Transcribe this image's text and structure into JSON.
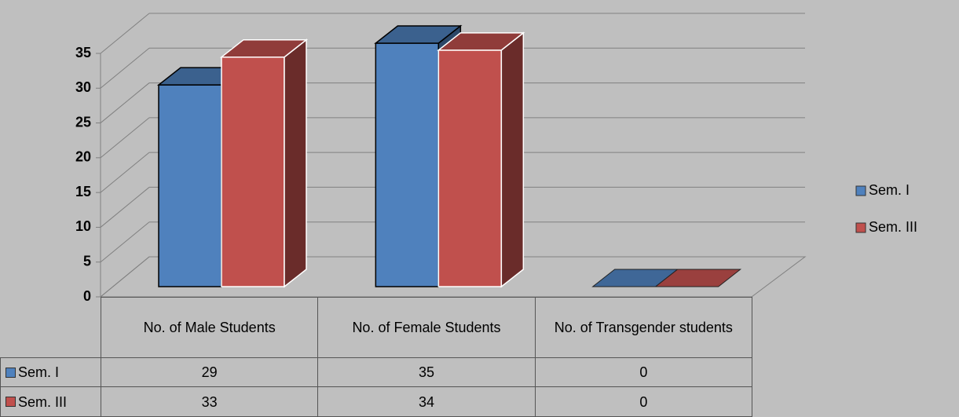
{
  "chart_data": {
    "type": "bar3d",
    "categories": [
      "No. of Male Students",
      "No. of Female Students",
      "No. of Transgender students"
    ],
    "series": [
      {
        "name": "Sem. I",
        "color": "#4f81bd",
        "values": [
          29,
          35,
          0
        ]
      },
      {
        "name": "Sem. III",
        "color": "#c0504d",
        "values": [
          33,
          34,
          0
        ]
      }
    ],
    "ylim": [
      0,
      35
    ],
    "yticks": [
      0,
      5,
      10,
      15,
      20,
      25,
      30,
      35
    ],
    "grid": true,
    "legend": "right",
    "data_table": true
  }
}
